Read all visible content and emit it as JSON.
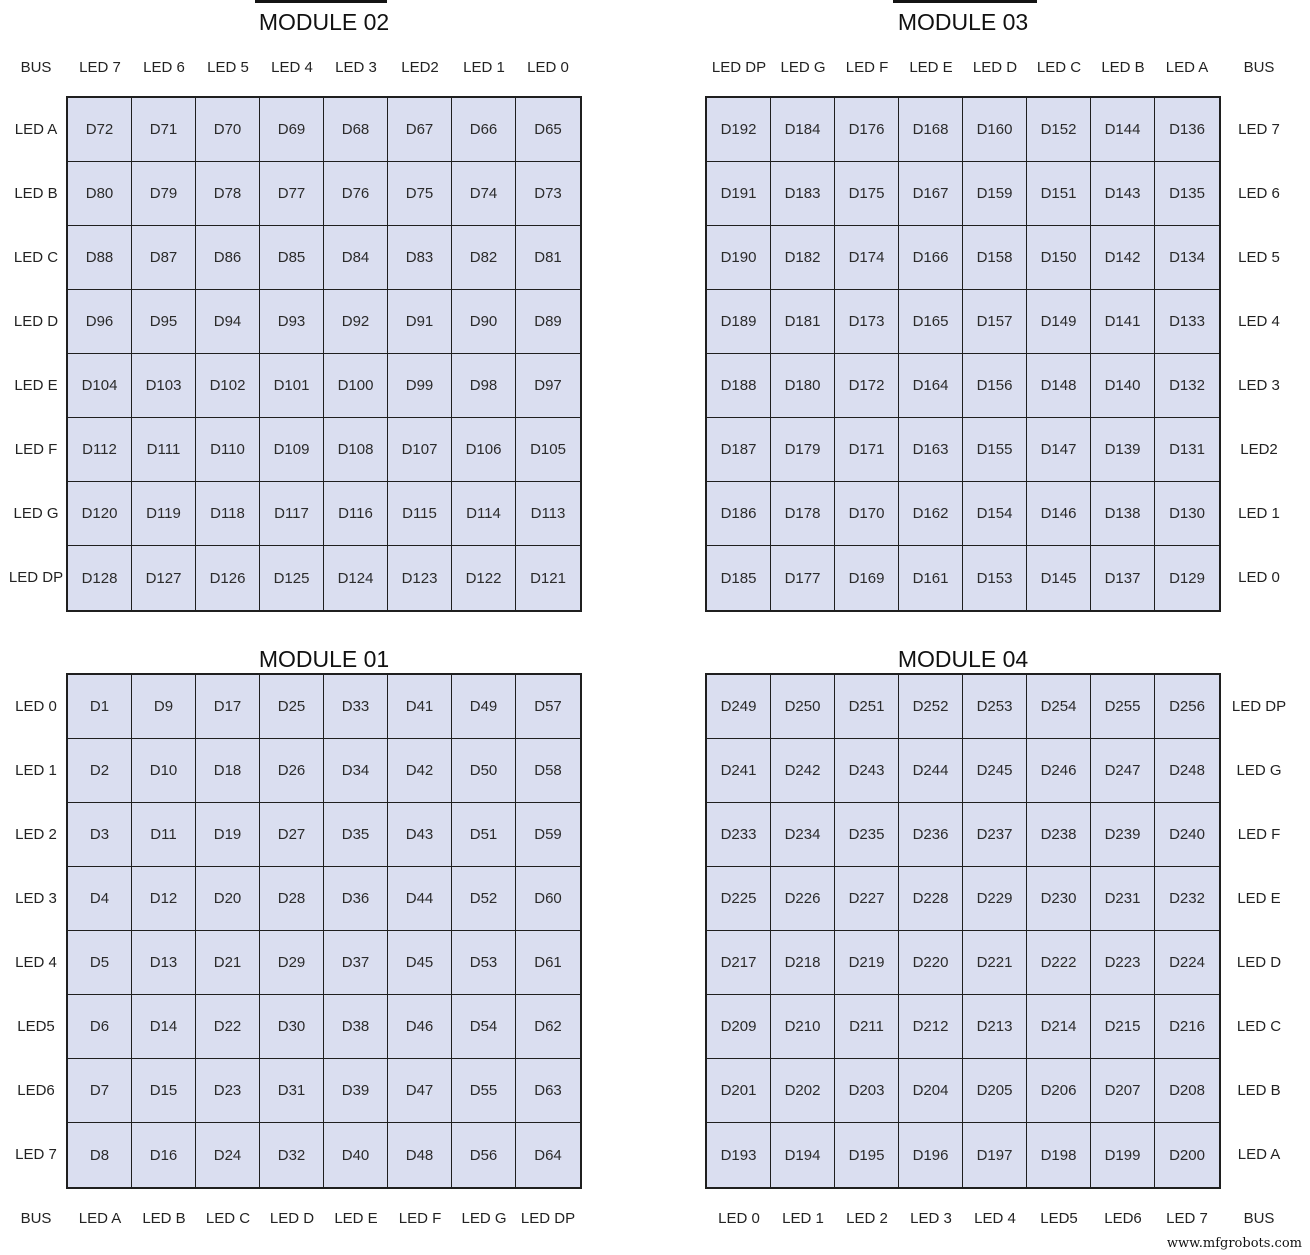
{
  "page": {
    "watermark": "www.mfgrobots.com",
    "background": "#ffffff",
    "colors": {
      "cell_fill": "#dadef0",
      "grid_line": "#1f1f1f",
      "text": "#222222"
    }
  },
  "modules": [
    {
      "id": "module-02",
      "title": "MODULE 02",
      "position": "top-left",
      "bus_label": "BUS",
      "bus_side": "left",
      "labels_edge": "top",
      "row_labels_side": "left",
      "col_labels": [
        "LED 7",
        "LED 6",
        "LED 5",
        "LED 4",
        "LED 3",
        "LED2",
        "LED 1",
        "LED 0"
      ],
      "row_labels": [
        "LED A",
        "LED B",
        "LED C",
        "LED D",
        "LED E",
        "LED F",
        "LED G",
        "LED DP"
      ],
      "rows": [
        [
          "D72",
          "D71",
          "D70",
          "D69",
          "D68",
          "D67",
          "D66",
          "D65"
        ],
        [
          "D80",
          "D79",
          "D78",
          "D77",
          "D76",
          "D75",
          "D74",
          "D73"
        ],
        [
          "D88",
          "D87",
          "D86",
          "D85",
          "D84",
          "D83",
          "D82",
          "D81"
        ],
        [
          "D96",
          "D95",
          "D94",
          "D93",
          "D92",
          "D91",
          "D90",
          "D89"
        ],
        [
          "D104",
          "D103",
          "D102",
          "D101",
          "D100",
          "D99",
          "D98",
          "D97"
        ],
        [
          "D112",
          "D111",
          "D110",
          "D109",
          "D108",
          "D107",
          "D106",
          "D105"
        ],
        [
          "D120",
          "D119",
          "D118",
          "D117",
          "D116",
          "D115",
          "D114",
          "D113"
        ],
        [
          "D128",
          "D127",
          "D126",
          "D125",
          "D124",
          "D123",
          "D122",
          "D121"
        ]
      ]
    },
    {
      "id": "module-03",
      "title": "MODULE 03",
      "position": "top-right",
      "bus_label": "BUS",
      "bus_side": "right",
      "labels_edge": "top",
      "row_labels_side": "right",
      "col_labels": [
        "LED DP",
        "LED G",
        "LED F",
        "LED E",
        "LED D",
        "LED C",
        "LED B",
        "LED A"
      ],
      "row_labels": [
        "LED 7",
        "LED 6",
        "LED 5",
        "LED 4",
        "LED 3",
        "LED2",
        "LED 1",
        "LED 0"
      ],
      "rows": [
        [
          "D192",
          "D184",
          "D176",
          "D168",
          "D160",
          "D152",
          "D144",
          "D136"
        ],
        [
          "D191",
          "D183",
          "D175",
          "D167",
          "D159",
          "D151",
          "D143",
          "D135"
        ],
        [
          "D190",
          "D182",
          "D174",
          "D166",
          "D158",
          "D150",
          "D142",
          "D134"
        ],
        [
          "D189",
          "D181",
          "D173",
          "D165",
          "D157",
          "D149",
          "D141",
          "D133"
        ],
        [
          "D188",
          "D180",
          "D172",
          "D164",
          "D156",
          "D148",
          "D140",
          "D132"
        ],
        [
          "D187",
          "D179",
          "D171",
          "D163",
          "D155",
          "D147",
          "D139",
          "D131"
        ],
        [
          "D186",
          "D178",
          "D170",
          "D162",
          "D154",
          "D146",
          "D138",
          "D130"
        ],
        [
          "D185",
          "D177",
          "D169",
          "D161",
          "D153",
          "D145",
          "D137",
          "D129"
        ]
      ]
    },
    {
      "id": "module-01",
      "title": "MODULE 01",
      "position": "bottom-left",
      "bus_label": "BUS",
      "bus_side": "left",
      "labels_edge": "bottom",
      "row_labels_side": "left",
      "col_labels": [
        "LED A",
        "LED B",
        "LED C",
        "LED D",
        "LED E",
        "LED F",
        "LED G",
        "LED DP"
      ],
      "row_labels": [
        "LED 0",
        "LED 1",
        "LED 2",
        "LED 3",
        "LED 4",
        "LED5",
        "LED6",
        "LED 7"
      ],
      "rows": [
        [
          "D1",
          "D9",
          "D17",
          "D25",
          "D33",
          "D41",
          "D49",
          "D57"
        ],
        [
          "D2",
          "D10",
          "D18",
          "D26",
          "D34",
          "D42",
          "D50",
          "D58"
        ],
        [
          "D3",
          "D11",
          "D19",
          "D27",
          "D35",
          "D43",
          "D51",
          "D59"
        ],
        [
          "D4",
          "D12",
          "D20",
          "D28",
          "D36",
          "D44",
          "D52",
          "D60"
        ],
        [
          "D5",
          "D13",
          "D21",
          "D29",
          "D37",
          "D45",
          "D53",
          "D61"
        ],
        [
          "D6",
          "D14",
          "D22",
          "D30",
          "D38",
          "D46",
          "D54",
          "D62"
        ],
        [
          "D7",
          "D15",
          "D23",
          "D31",
          "D39",
          "D47",
          "D55",
          "D63"
        ],
        [
          "D8",
          "D16",
          "D24",
          "D32",
          "D40",
          "D48",
          "D56",
          "D64"
        ]
      ]
    },
    {
      "id": "module-04",
      "title": "MODULE 04",
      "position": "bottom-right",
      "bus_label": "BUS",
      "bus_side": "right",
      "labels_edge": "bottom",
      "row_labels_side": "right",
      "col_labels": [
        "LED 0",
        "LED 1",
        "LED 2",
        "LED 3",
        "LED 4",
        "LED5",
        "LED6",
        "LED 7"
      ],
      "row_labels": [
        "LED DP",
        "LED G",
        "LED F",
        "LED E",
        "LED D",
        "LED C",
        "LED B",
        "LED A"
      ],
      "rows": [
        [
          "D249",
          "D250",
          "D251",
          "D252",
          "D253",
          "D254",
          "D255",
          "D256"
        ],
        [
          "D241",
          "D242",
          "D243",
          "D244",
          "D245",
          "D246",
          "D247",
          "D248"
        ],
        [
          "D233",
          "D234",
          "D235",
          "D236",
          "D237",
          "D238",
          "D239",
          "D240"
        ],
        [
          "D225",
          "D226",
          "D227",
          "D228",
          "D229",
          "D230",
          "D231",
          "D232"
        ],
        [
          "D217",
          "D218",
          "D219",
          "D220",
          "D221",
          "D222",
          "D223",
          "D224"
        ],
        [
          "D209",
          "D210",
          "D211",
          "D212",
          "D213",
          "D214",
          "D215",
          "D216"
        ],
        [
          "D201",
          "D202",
          "D203",
          "D204",
          "D205",
          "D206",
          "D207",
          "D208"
        ],
        [
          "D193",
          "D194",
          "D195",
          "D196",
          "D197",
          "D198",
          "D199",
          "D200"
        ]
      ]
    }
  ]
}
